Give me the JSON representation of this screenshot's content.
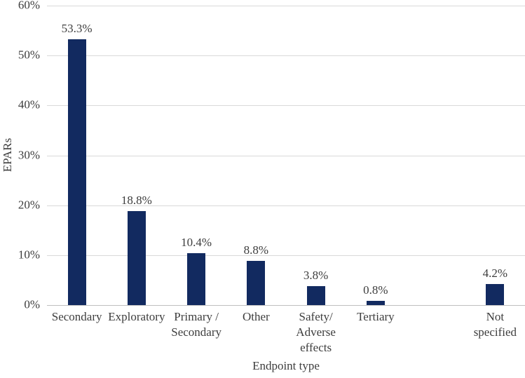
{
  "chart_data": {
    "type": "bar",
    "title": "",
    "xlabel": "Endpoint type",
    "ylabel": "EPARs",
    "ylim": [
      0,
      60
    ],
    "y_tick_step": 10,
    "y_tick_labels": [
      "0%",
      "10%",
      "20%",
      "30%",
      "40%",
      "50%",
      "60%"
    ],
    "grid": "horizontal",
    "legend": "none",
    "bar_color": "#122a60",
    "categories": [
      "Secondary",
      "Exploratory",
      "Primary /\nSecondary",
      "Other",
      "Safety/\nAdverse\neffects",
      "Tertiary",
      "",
      "Not\nspecified"
    ],
    "values": [
      53.3,
      18.8,
      10.4,
      8.8,
      3.8,
      0.8,
      null,
      4.2
    ],
    "data_labels": [
      "53.3%",
      "18.8%",
      "10.4%",
      "8.8%",
      "3.8%",
      "0.8%",
      "",
      "4.2%"
    ]
  },
  "colors": {
    "bar": "#122a60",
    "gridline": "#d9d9d9",
    "baseline": "#bfbfbf",
    "text": "#3d3d3d"
  }
}
